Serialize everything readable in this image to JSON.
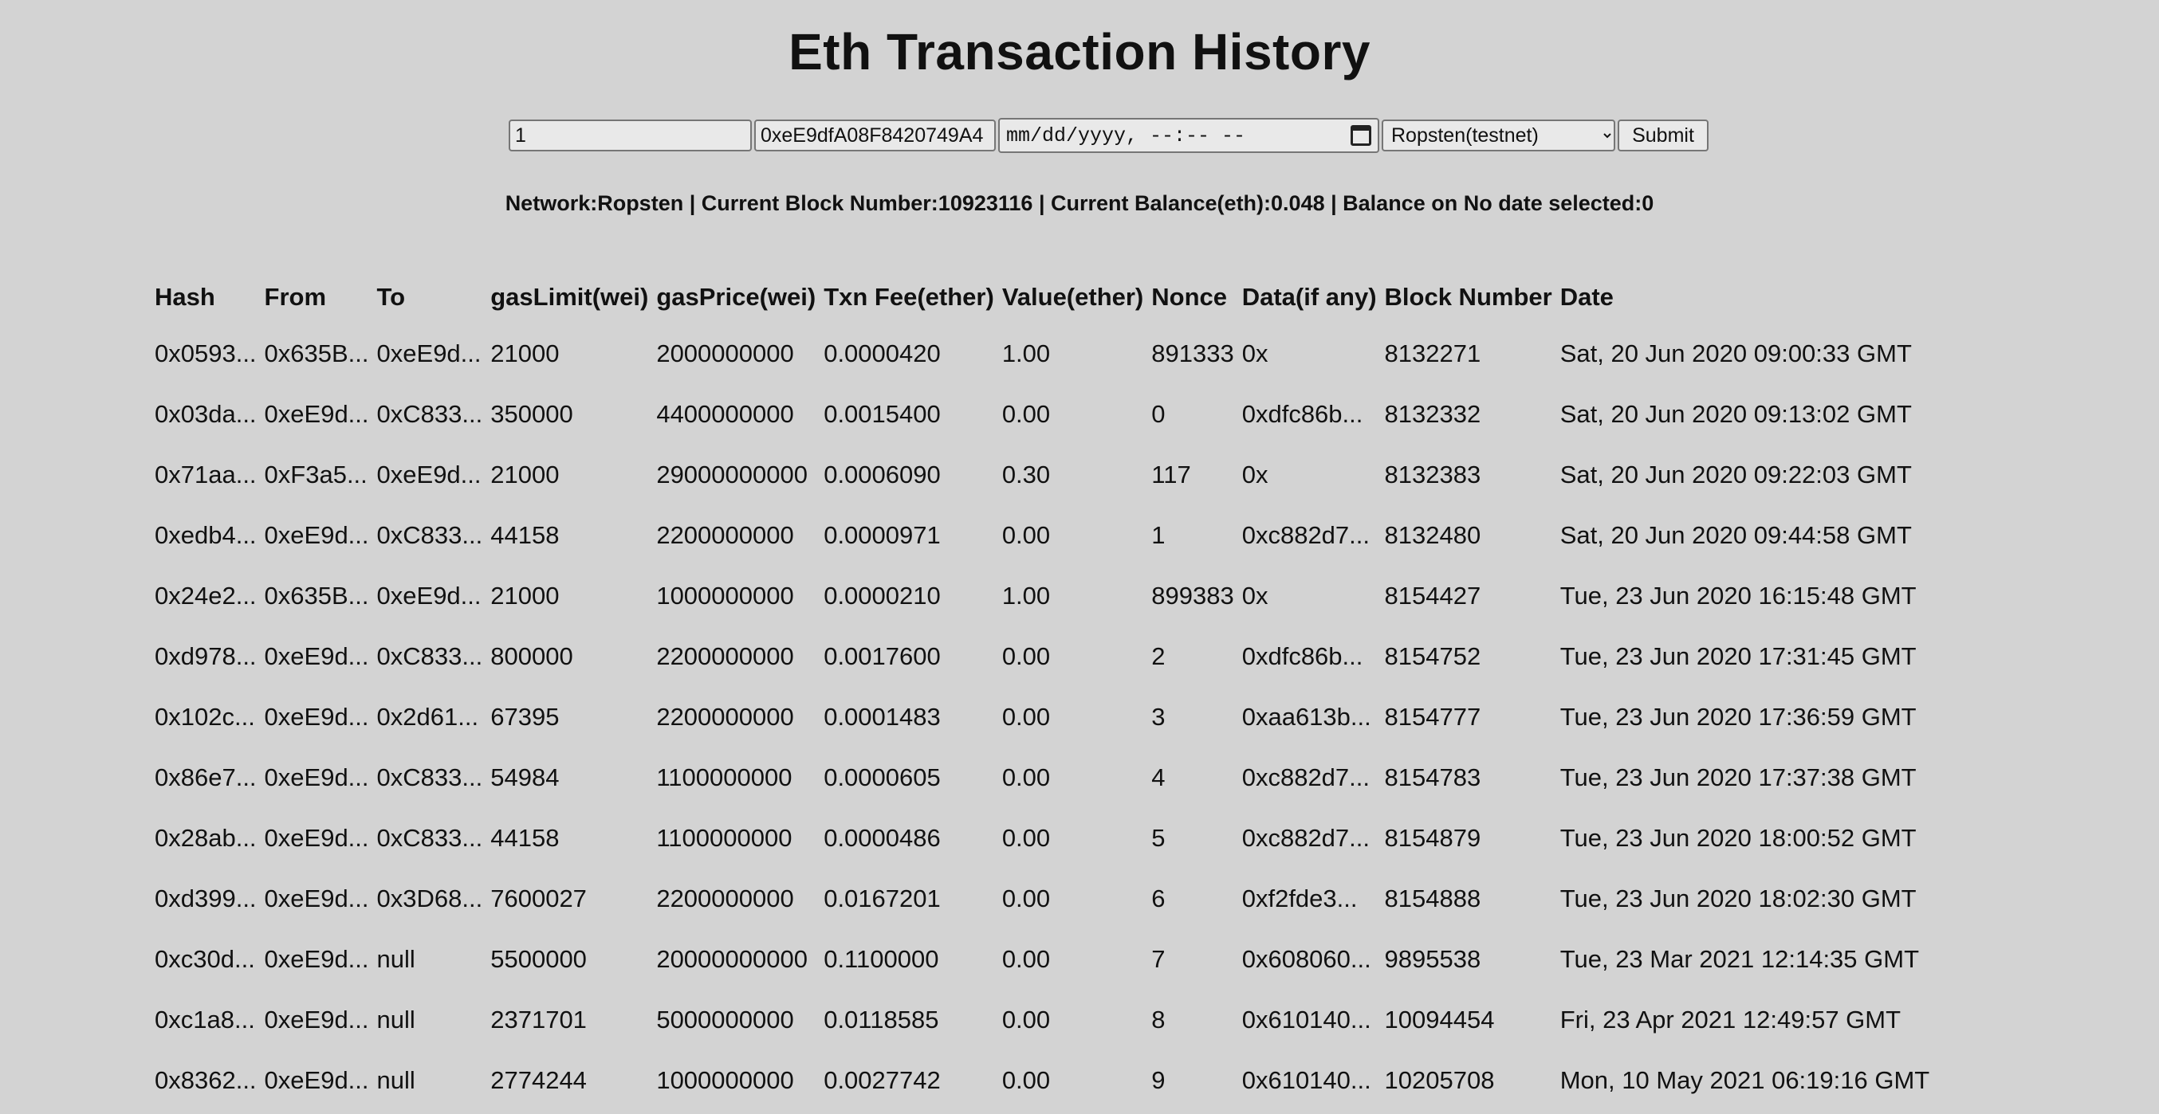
{
  "title": "Eth Transaction History",
  "form": {
    "number_value": "1",
    "address_value": "0xeE9dfA08F8420749A4",
    "date_placeholder": "mm/dd/yyyy, --:-- --",
    "network_selected": "Ropsten(testnet)",
    "submit_label": "Submit"
  },
  "info_line": "Network:Ropsten | Current Block Number:10923116 | Current Balance(eth):0.048 | Balance on No date selected:0",
  "table": {
    "headers": [
      "Hash",
      "From",
      "To",
      "gasLimit(wei)",
      "gasPrice(wei)",
      "Txn Fee(ether)",
      "Value(ether)",
      "Nonce",
      "Data(if any)",
      "Block Number",
      "Date"
    ],
    "rows": [
      [
        "0x0593...",
        "0x635B...",
        "0xeE9d...",
        "21000",
        "2000000000",
        "0.0000420",
        "1.00",
        "891333",
        "0x",
        "8132271",
        "Sat, 20 Jun 2020 09:00:33 GMT"
      ],
      [
        "0x03da...",
        "0xeE9d...",
        "0xC833...",
        "350000",
        "4400000000",
        "0.0015400",
        "0.00",
        "0",
        "0xdfc86b...",
        "8132332",
        "Sat, 20 Jun 2020 09:13:02 GMT"
      ],
      [
        "0x71aa...",
        "0xF3a5...",
        "0xeE9d...",
        "21000",
        "29000000000",
        "0.0006090",
        "0.30",
        "117",
        "0x",
        "8132383",
        "Sat, 20 Jun 2020 09:22:03 GMT"
      ],
      [
        "0xedb4...",
        "0xeE9d...",
        "0xC833...",
        "44158",
        "2200000000",
        "0.0000971",
        "0.00",
        "1",
        "0xc882d7...",
        "8132480",
        "Sat, 20 Jun 2020 09:44:58 GMT"
      ],
      [
        "0x24e2...",
        "0x635B...",
        "0xeE9d...",
        "21000",
        "1000000000",
        "0.0000210",
        "1.00",
        "899383",
        "0x",
        "8154427",
        "Tue, 23 Jun 2020 16:15:48 GMT"
      ],
      [
        "0xd978...",
        "0xeE9d...",
        "0xC833...",
        "800000",
        "2200000000",
        "0.0017600",
        "0.00",
        "2",
        "0xdfc86b...",
        "8154752",
        "Tue, 23 Jun 2020 17:31:45 GMT"
      ],
      [
        "0x102c...",
        "0xeE9d...",
        "0x2d61...",
        "67395",
        "2200000000",
        "0.0001483",
        "0.00",
        "3",
        "0xaa613b...",
        "8154777",
        "Tue, 23 Jun 2020 17:36:59 GMT"
      ],
      [
        "0x86e7...",
        "0xeE9d...",
        "0xC833...",
        "54984",
        "1100000000",
        "0.0000605",
        "0.00",
        "4",
        "0xc882d7...",
        "8154783",
        "Tue, 23 Jun 2020 17:37:38 GMT"
      ],
      [
        "0x28ab...",
        "0xeE9d...",
        "0xC833...",
        "44158",
        "1100000000",
        "0.0000486",
        "0.00",
        "5",
        "0xc882d7...",
        "8154879",
        "Tue, 23 Jun 2020 18:00:52 GMT"
      ],
      [
        "0xd399...",
        "0xeE9d...",
        "0x3D68...",
        "7600027",
        "2200000000",
        "0.0167201",
        "0.00",
        "6",
        "0xf2fde3...",
        "8154888",
        "Tue, 23 Jun 2020 18:02:30 GMT"
      ],
      [
        "0xc30d...",
        "0xeE9d...",
        "null",
        "5500000",
        "20000000000",
        "0.1100000",
        "0.00",
        "7",
        "0x608060...",
        "9895538",
        "Tue, 23 Mar 2021 12:14:35 GMT"
      ],
      [
        "0xc1a8...",
        "0xeE9d...",
        "null",
        "2371701",
        "5000000000",
        "0.0118585",
        "0.00",
        "8",
        "0x610140...",
        "10094454",
        "Fri, 23 Apr 2021 12:49:57 GMT"
      ],
      [
        "0x8362...",
        "0xeE9d...",
        "null",
        "2774244",
        "1000000000",
        "0.0027742",
        "0.00",
        "9",
        "0x610140...",
        "10205708",
        "Mon, 10 May 2021 06:19:16 GMT"
      ]
    ]
  }
}
